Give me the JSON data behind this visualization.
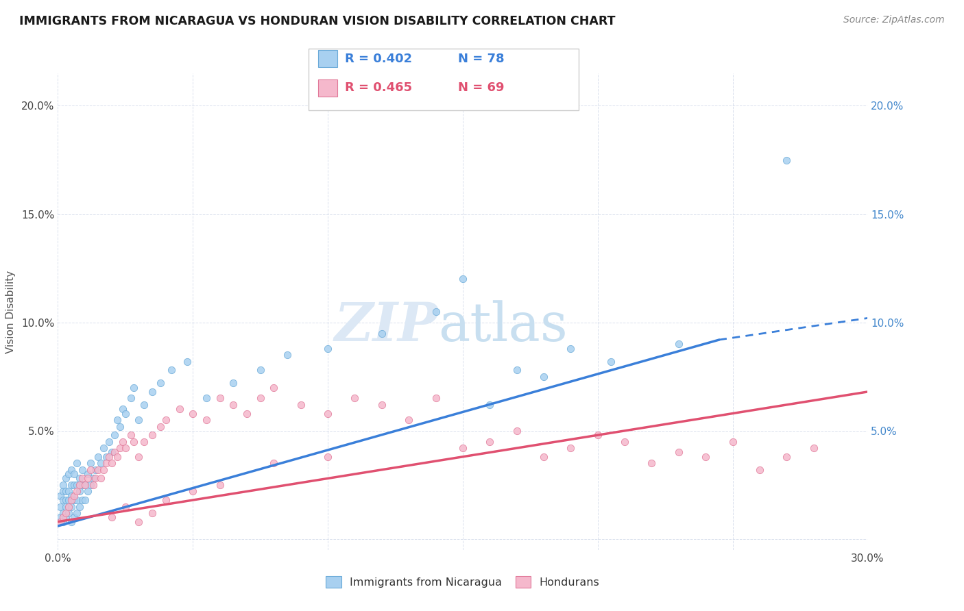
{
  "title": "IMMIGRANTS FROM NICARAGUA VS HONDURAN VISION DISABILITY CORRELATION CHART",
  "source": "Source: ZipAtlas.com",
  "ylabel": "Vision Disability",
  "watermark_zip": "ZIP",
  "watermark_atlas": "atlas",
  "legend_entries": [
    {
      "label": "Immigrants from Nicaragua",
      "R": "0.402",
      "N": "78",
      "color": "#a8d0f0",
      "edge_color": "#6aaad8"
    },
    {
      "label": "Hondurans",
      "R": "0.465",
      "N": "69",
      "color": "#f5b8cc",
      "edge_color": "#e07898"
    }
  ],
  "xlim": [
    0.0,
    0.3
  ],
  "ylim": [
    -0.005,
    0.215
  ],
  "xticks": [
    0.0,
    0.05,
    0.1,
    0.15,
    0.2,
    0.25,
    0.3
  ],
  "yticks": [
    0.0,
    0.05,
    0.1,
    0.15,
    0.2
  ],
  "trendline_nicaragua": {
    "color": "#3a7fd9",
    "x_start": 0.0,
    "x_end": 0.245,
    "y_start": 0.006,
    "y_end": 0.092,
    "dash_x_start": 0.245,
    "dash_x_end": 0.3,
    "dash_y_start": 0.092,
    "dash_y_end": 0.102
  },
  "trendline_honduran": {
    "color": "#e05070",
    "x_start": 0.0,
    "x_end": 0.3,
    "y_start": 0.008,
    "y_end": 0.068
  },
  "scatter_nicaragua_x": [
    0.001,
    0.001,
    0.001,
    0.002,
    0.002,
    0.002,
    0.002,
    0.002,
    0.003,
    0.003,
    0.003,
    0.003,
    0.003,
    0.004,
    0.004,
    0.004,
    0.004,
    0.005,
    0.005,
    0.005,
    0.005,
    0.005,
    0.006,
    0.006,
    0.006,
    0.006,
    0.007,
    0.007,
    0.007,
    0.007,
    0.008,
    0.008,
    0.008,
    0.009,
    0.009,
    0.009,
    0.01,
    0.01,
    0.011,
    0.011,
    0.012,
    0.012,
    0.013,
    0.014,
    0.015,
    0.016,
    0.017,
    0.018,
    0.019,
    0.02,
    0.021,
    0.022,
    0.023,
    0.024,
    0.025,
    0.027,
    0.028,
    0.03,
    0.032,
    0.035,
    0.038,
    0.042,
    0.048,
    0.055,
    0.065,
    0.075,
    0.085,
    0.1,
    0.12,
    0.14,
    0.16,
    0.18,
    0.205,
    0.23,
    0.15,
    0.17,
    0.19,
    0.27
  ],
  "scatter_nicaragua_y": [
    0.01,
    0.015,
    0.02,
    0.008,
    0.012,
    0.018,
    0.022,
    0.025,
    0.01,
    0.015,
    0.018,
    0.022,
    0.028,
    0.012,
    0.018,
    0.022,
    0.03,
    0.008,
    0.015,
    0.02,
    0.025,
    0.032,
    0.01,
    0.018,
    0.025,
    0.03,
    0.012,
    0.018,
    0.025,
    0.035,
    0.015,
    0.022,
    0.028,
    0.018,
    0.025,
    0.032,
    0.018,
    0.025,
    0.022,
    0.03,
    0.025,
    0.035,
    0.028,
    0.032,
    0.038,
    0.035,
    0.042,
    0.038,
    0.045,
    0.04,
    0.048,
    0.055,
    0.052,
    0.06,
    0.058,
    0.065,
    0.07,
    0.055,
    0.062,
    0.068,
    0.072,
    0.078,
    0.082,
    0.065,
    0.072,
    0.078,
    0.085,
    0.088,
    0.095,
    0.105,
    0.062,
    0.075,
    0.082,
    0.09,
    0.12,
    0.078,
    0.088,
    0.175
  ],
  "scatter_honduran_x": [
    0.001,
    0.002,
    0.003,
    0.004,
    0.005,
    0.006,
    0.007,
    0.008,
    0.009,
    0.01,
    0.011,
    0.012,
    0.013,
    0.014,
    0.015,
    0.016,
    0.017,
    0.018,
    0.019,
    0.02,
    0.021,
    0.022,
    0.023,
    0.024,
    0.025,
    0.027,
    0.028,
    0.03,
    0.032,
    0.035,
    0.038,
    0.04,
    0.045,
    0.05,
    0.055,
    0.06,
    0.065,
    0.07,
    0.075,
    0.08,
    0.09,
    0.1,
    0.11,
    0.12,
    0.13,
    0.14,
    0.15,
    0.16,
    0.17,
    0.18,
    0.19,
    0.2,
    0.21,
    0.22,
    0.23,
    0.24,
    0.25,
    0.26,
    0.27,
    0.28,
    0.02,
    0.025,
    0.03,
    0.035,
    0.04,
    0.05,
    0.06,
    0.08,
    0.1
  ],
  "scatter_honduran_y": [
    0.008,
    0.01,
    0.012,
    0.015,
    0.018,
    0.02,
    0.022,
    0.025,
    0.028,
    0.025,
    0.028,
    0.032,
    0.025,
    0.028,
    0.032,
    0.028,
    0.032,
    0.035,
    0.038,
    0.035,
    0.04,
    0.038,
    0.042,
    0.045,
    0.042,
    0.048,
    0.045,
    0.038,
    0.045,
    0.048,
    0.052,
    0.055,
    0.06,
    0.058,
    0.055,
    0.065,
    0.062,
    0.058,
    0.065,
    0.07,
    0.062,
    0.058,
    0.065,
    0.062,
    0.055,
    0.065,
    0.042,
    0.045,
    0.05,
    0.038,
    0.042,
    0.048,
    0.045,
    0.035,
    0.04,
    0.038,
    0.045,
    0.032,
    0.038,
    0.042,
    0.01,
    0.015,
    0.008,
    0.012,
    0.018,
    0.022,
    0.025,
    0.035,
    0.038
  ],
  "background_color": "#ffffff",
  "grid_color": "#d0d8e8",
  "title_fontsize": 12.5,
  "source_fontsize": 10,
  "tick_fontsize": 11,
  "ylabel_fontsize": 11
}
